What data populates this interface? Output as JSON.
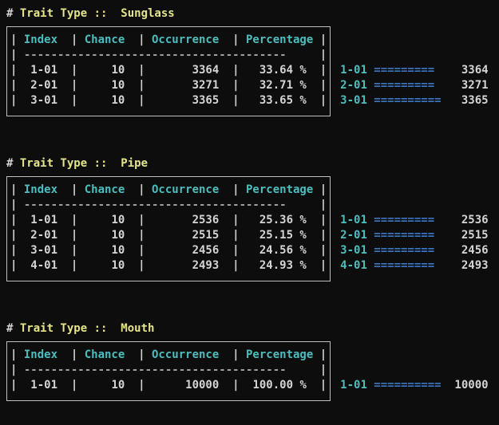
{
  "colors": {
    "background": "#0d0d0d",
    "text": "#d4d4d4",
    "title_yellow": "#e5e48b",
    "header_cyan": "#4dbdbd",
    "bar_blue": "#3d77c2",
    "dash_gray": "#9e9e9e",
    "border_gray": "#bfbfbf"
  },
  "section_title": {
    "hash": "#",
    "label": "Trait Type ::"
  },
  "table": {
    "pipe": "|",
    "separator_dashes": "---------------------------------------",
    "headers": {
      "index": "Index",
      "chance": "Chance",
      "occurrence": "Occurrence",
      "percentage": "Percentage"
    }
  },
  "chart_data": [
    {
      "type": "bar",
      "title": "Trait Type :: Sunglass",
      "categories": [
        "1-01",
        "2-01",
        "3-01"
      ],
      "values": [
        3364,
        3271,
        3365
      ],
      "percentages": [
        33.64,
        32.71,
        33.65
      ]
    },
    {
      "type": "bar",
      "title": "Trait Type :: Pipe",
      "categories": [
        "1-01",
        "2-01",
        "3-01",
        "4-01"
      ],
      "values": [
        2536,
        2515,
        2456,
        2493
      ],
      "percentages": [
        25.36,
        25.15,
        24.56,
        24.93
      ]
    },
    {
      "type": "bar",
      "title": "Trait Type :: Mouth",
      "categories": [
        "1-01"
      ],
      "values": [
        10000
      ],
      "percentages": [
        100.0
      ]
    }
  ],
  "sections": [
    {
      "name": "Sunglass",
      "rows": [
        {
          "index": "1-01",
          "chance": "10",
          "occurrence": "3364",
          "percentage": "33.64 %",
          "bar_label": "1-01",
          "bar": "=========",
          "value": "3364"
        },
        {
          "index": "2-01",
          "chance": "10",
          "occurrence": "3271",
          "percentage": "32.71 %",
          "bar_label": "2-01",
          "bar": "=========",
          "value": "3271"
        },
        {
          "index": "3-01",
          "chance": "10",
          "occurrence": "3365",
          "percentage": "33.65 %",
          "bar_label": "3-01",
          "bar": "==========",
          "value": "3365"
        }
      ]
    },
    {
      "name": "Pipe",
      "rows": [
        {
          "index": "1-01",
          "chance": "10",
          "occurrence": "2536",
          "percentage": "25.36 %",
          "bar_label": "1-01",
          "bar": "=========",
          "value": "2536"
        },
        {
          "index": "2-01",
          "chance": "10",
          "occurrence": "2515",
          "percentage": "25.15 %",
          "bar_label": "2-01",
          "bar": "=========",
          "value": "2515"
        },
        {
          "index": "3-01",
          "chance": "10",
          "occurrence": "2456",
          "percentage": "24.56 %",
          "bar_label": "3-01",
          "bar": "=========",
          "value": "2456"
        },
        {
          "index": "4-01",
          "chance": "10",
          "occurrence": "2493",
          "percentage": "24.93 %",
          "bar_label": "4-01",
          "bar": "=========",
          "value": "2493"
        }
      ]
    },
    {
      "name": "Mouth",
      "rows": [
        {
          "index": "1-01",
          "chance": "10",
          "occurrence": "10000",
          "percentage": "100.00 %",
          "bar_label": "1-01",
          "bar": "==========",
          "value": "10000"
        }
      ]
    }
  ]
}
